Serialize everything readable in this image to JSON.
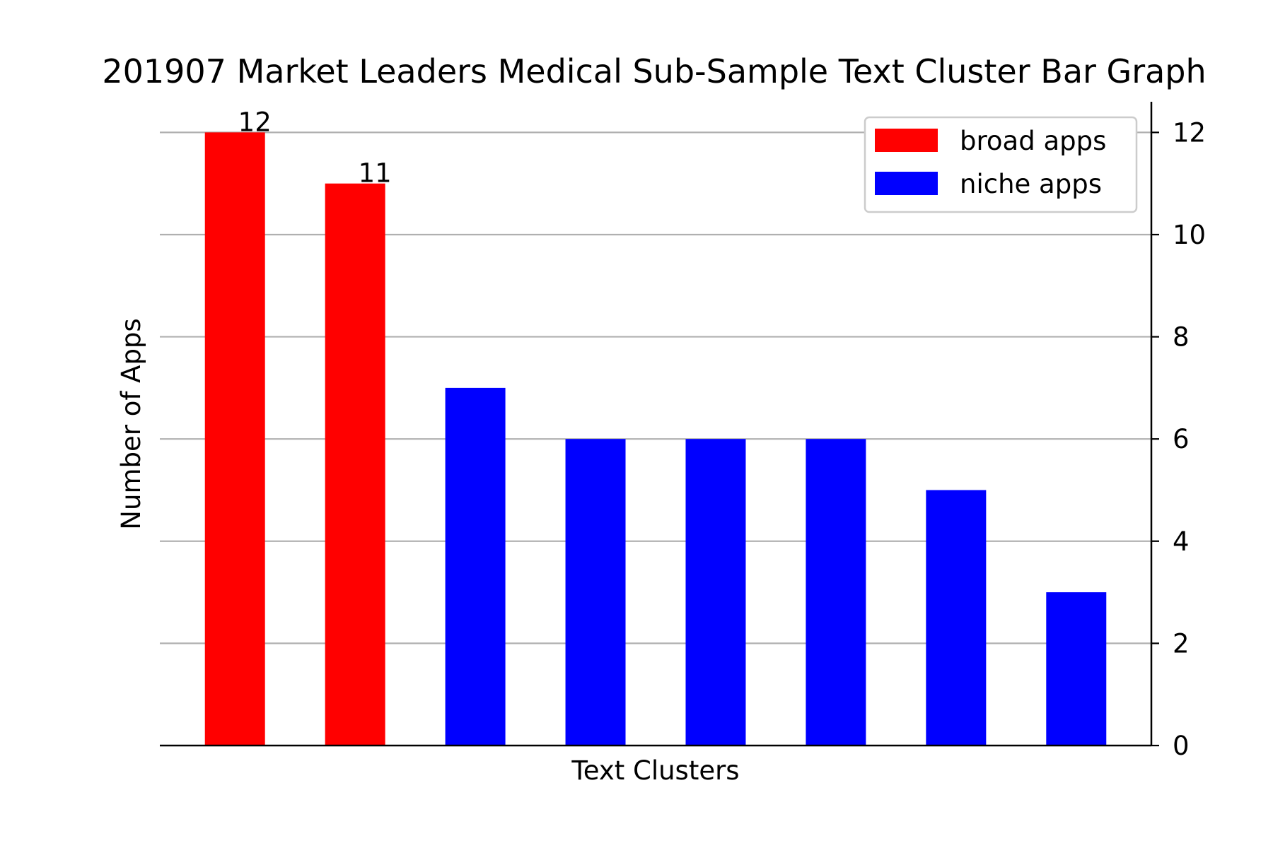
{
  "chart_data": {
    "type": "bar",
    "title": "201907 Market Leaders Medical Sub-Sample Text Cluster Bar Graph",
    "xlabel": "Text Clusters",
    "ylabel": "Number of Apps",
    "ylim": [
      0,
      12.6
    ],
    "yticks": [
      0,
      2,
      4,
      6,
      8,
      10,
      12
    ],
    "y_axis_side": "right",
    "grid": "horizontal",
    "legend_position": "top-right",
    "categories": [
      "",
      "",
      "",
      "",
      "",
      "",
      "",
      ""
    ],
    "values": [
      12,
      11,
      7,
      6,
      6,
      6,
      5,
      3
    ],
    "bar_series": [
      "broad apps",
      "broad apps",
      "niche apps",
      "niche apps",
      "niche apps",
      "niche apps",
      "niche apps",
      "niche apps"
    ],
    "data_labels": [
      {
        "index": 0,
        "text": "12"
      },
      {
        "index": 1,
        "text": "11"
      }
    ],
    "series": [
      {
        "name": "broad apps",
        "color": "#ff0000"
      },
      {
        "name": "niche apps",
        "color": "#0000ff"
      }
    ]
  }
}
